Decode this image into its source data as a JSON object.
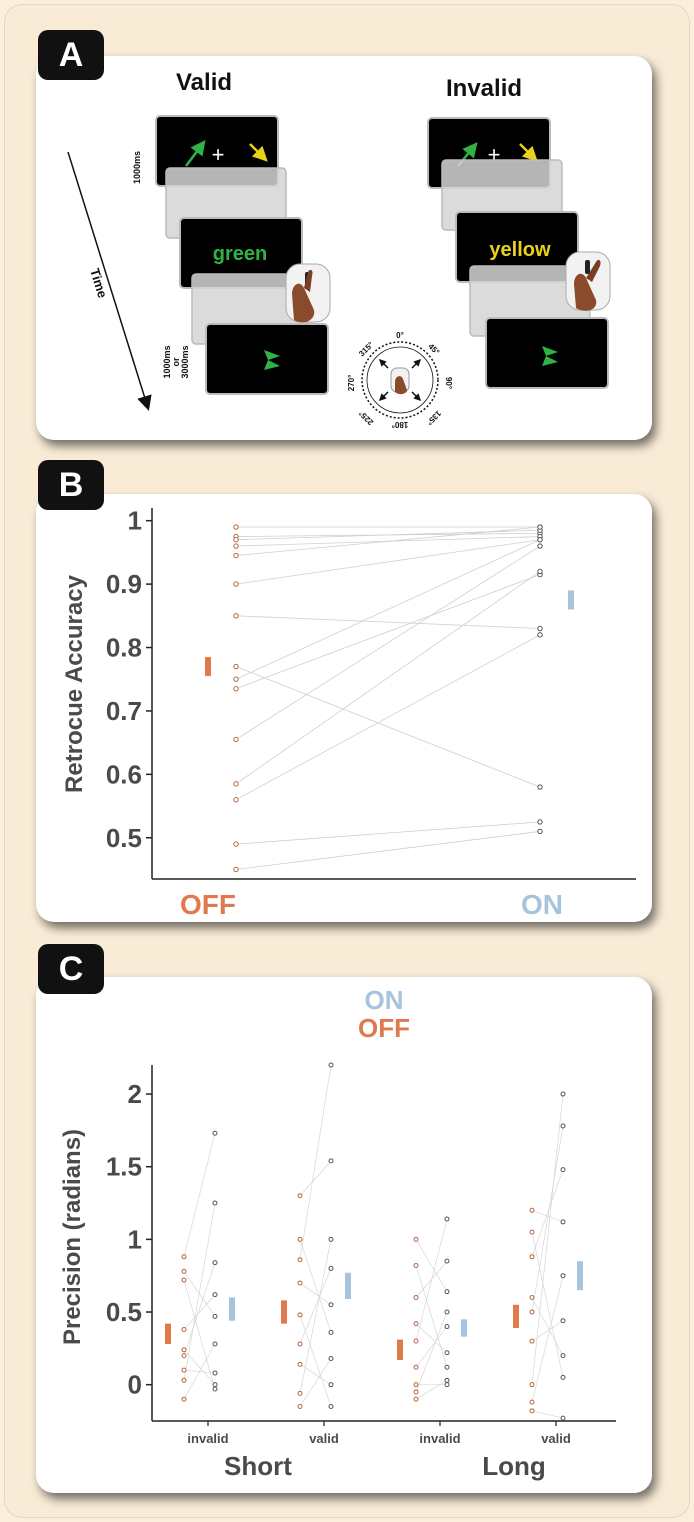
{
  "panel_labels": {
    "a": "A",
    "b": "B",
    "c": "C"
  },
  "panel_a": {
    "valid_title": "Valid",
    "invalid_title": "Invalid",
    "time_label": "Time",
    "duration_1000": "1000ms",
    "duration_delay_line1": "1000ms",
    "duration_delay_line2": "or",
    "duration_delay_line3": "3000ms",
    "fixation": "+",
    "valid_word": "green",
    "invalid_word": "yellow",
    "dial_labels": [
      "0°",
      "45°",
      "90°",
      "135°",
      "180°",
      "225°",
      "270°",
      "315°"
    ],
    "colors": {
      "green": "#2fb344",
      "yellow": "#e8d21a",
      "screen": "#000000"
    }
  },
  "chart_data": [
    {
      "type": "scatter",
      "panel": "B",
      "ylabel": "Retrocue Accuracy",
      "categories": [
        "OFF",
        "ON"
      ],
      "ylim": [
        0.45,
        1.0
      ],
      "yticks": [
        0.5,
        0.6,
        0.7,
        0.8,
        0.9,
        1
      ],
      "ytick_labels": [
        "0.5",
        "0.6",
        "0.7",
        "0.8",
        "0.9",
        "1"
      ],
      "pairs": [
        [
          0.99,
          0.99
        ],
        [
          0.975,
          0.98
        ],
        [
          0.97,
          0.985
        ],
        [
          0.96,
          0.975
        ],
        [
          0.945,
          0.99
        ],
        [
          0.9,
          0.97
        ],
        [
          0.85,
          0.83
        ],
        [
          0.77,
          0.58
        ],
        [
          0.75,
          0.97
        ],
        [
          0.735,
          0.915
        ],
        [
          0.655,
          0.96
        ],
        [
          0.585,
          0.92
        ],
        [
          0.56,
          0.82
        ],
        [
          0.49,
          0.525
        ],
        [
          0.45,
          0.51
        ]
      ],
      "means": [
        {
          "name": "OFF",
          "value": 0.77,
          "low": 0.755,
          "high": 0.785,
          "color": "#e07a4c"
        },
        {
          "name": "ON",
          "value": 0.875,
          "low": 0.86,
          "high": 0.89,
          "color": "#a8c3dd"
        }
      ]
    },
    {
      "type": "scatter",
      "panel": "C",
      "ylabel": "Precision (radians)",
      "legend": [
        {
          "name": "ON",
          "color": "#a8c3dd"
        },
        {
          "name": "OFF",
          "color": "#e07a4c"
        }
      ],
      "groups": [
        "Short",
        "Long"
      ],
      "conditions": [
        "invalid",
        "valid",
        "invalid",
        "valid"
      ],
      "ylim": [
        -0.25,
        2.2
      ],
      "yticks": [
        0,
        0.5,
        1,
        1.5,
        2
      ],
      "ytick_labels": [
        "0",
        "0.5",
        "1",
        "1.5",
        "2"
      ],
      "series": [
        {
          "name": "OFF",
          "color": "#e07a4c",
          "means": [
            0.35,
            0.5,
            0.24,
            0.47
          ],
          "errors": [
            0.07,
            0.08,
            0.07,
            0.08
          ],
          "points": [
            [
              0.88,
              0.78,
              0.72,
              0.38,
              0.24,
              0.2,
              0.1,
              0.03,
              -0.1
            ],
            [
              1.3,
              1.0,
              0.86,
              0.7,
              0.48,
              0.28,
              0.14,
              -0.06,
              -0.15
            ],
            [
              1.0,
              0.82,
              0.6,
              0.42,
              0.3,
              0.12,
              0.0,
              -0.05,
              -0.1
            ],
            [
              1.2,
              1.05,
              0.88,
              0.6,
              0.5,
              0.3,
              0.0,
              -0.12,
              -0.18
            ]
          ]
        },
        {
          "name": "ON",
          "color": "#a8c3dd",
          "means": [
            0.52,
            0.68,
            0.39,
            0.75
          ],
          "errors": [
            0.08,
            0.09,
            0.06,
            0.1
          ],
          "points": [
            [
              1.73,
              1.25,
              0.84,
              0.62,
              0.47,
              0.28,
              0.08,
              0.0,
              -0.03
            ],
            [
              2.2,
              1.54,
              1.0,
              0.8,
              0.55,
              0.36,
              0.18,
              0.0,
              -0.15
            ],
            [
              1.14,
              0.85,
              0.64,
              0.5,
              0.4,
              0.22,
              0.12,
              0.03,
              0.0
            ],
            [
              2.0,
              1.78,
              1.48,
              1.12,
              0.75,
              0.44,
              0.2,
              0.05,
              -0.23
            ]
          ]
        }
      ]
    }
  ]
}
